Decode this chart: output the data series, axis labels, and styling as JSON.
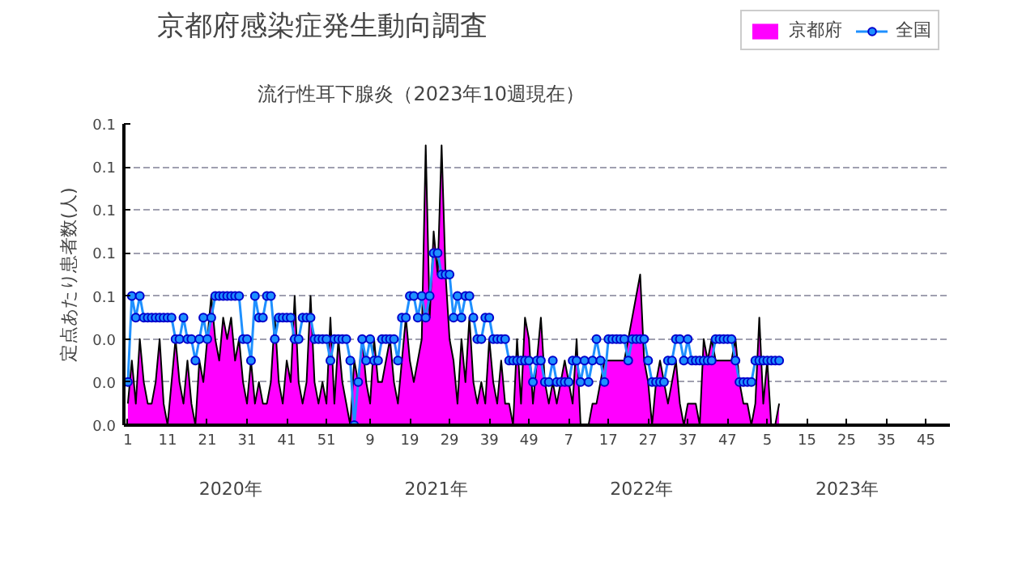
{
  "chart_data": {
    "type": "area",
    "title": "京都府感染症発生動向調査",
    "subtitle": "流行性耳下腺炎（2023年10週現在）",
    "ylabel": "定点あたり患者数(人)",
    "categories": [
      "1",
      null,
      null,
      null,
      null,
      null,
      null,
      null,
      null,
      null,
      "11",
      null,
      null,
      null,
      null,
      null,
      null,
      null,
      null,
      null,
      "21",
      null,
      null,
      null,
      null,
      null,
      null,
      null,
      null,
      null,
      "31",
      null,
      null,
      null,
      null,
      null,
      null,
      null,
      null,
      null,
      "41",
      null,
      null,
      null,
      null,
      null,
      null,
      null,
      null,
      null,
      "51",
      null,
      null,
      null,
      null,
      null,
      null,
      null,
      null,
      null,
      null,
      "9",
      null,
      null,
      null,
      null,
      null,
      null,
      null,
      null,
      null,
      "19",
      null,
      null,
      null,
      null,
      null,
      null,
      null,
      null,
      null,
      "29",
      null,
      null,
      null,
      null,
      null,
      null,
      null,
      null,
      null,
      "39",
      null,
      null,
      null,
      null,
      null,
      null,
      null,
      null,
      null,
      "49",
      null,
      null,
      null,
      null,
      null,
      null,
      null,
      null,
      null,
      "7",
      null,
      null,
      null,
      null,
      null,
      null,
      null,
      null,
      null,
      "17",
      null,
      null,
      null,
      null,
      null,
      null,
      null,
      null,
      null,
      "27",
      null,
      null,
      null,
      null,
      null,
      null,
      null,
      null,
      null,
      "37",
      null,
      null,
      null,
      null,
      null,
      null,
      null,
      null,
      null,
      "47",
      null,
      null,
      null,
      null,
      null,
      null,
      null,
      null,
      null,
      "5",
      null,
      null,
      null,
      null,
      null,
      null,
      null,
      null,
      null,
      "15",
      null,
      null,
      null,
      null,
      null,
      null,
      null,
      null,
      null,
      "25",
      null,
      null,
      null,
      null,
      null,
      null,
      null,
      null,
      null,
      "35",
      null,
      null,
      null,
      null,
      null,
      null,
      null,
      null,
      null,
      "45",
      null,
      null,
      null,
      null,
      null
    ],
    "series": [
      {
        "name": "京都府",
        "color": "#ff00ff",
        "values": [
          0.01,
          0.03,
          0.01,
          0.04,
          0.02,
          0.01,
          0.01,
          0.02,
          0.04,
          0.01,
          0,
          0.02,
          0.04,
          0.02,
          0.01,
          0.03,
          0.01,
          0,
          0.03,
          0.02,
          0.04,
          0.06,
          0.04,
          0.03,
          0.05,
          0.04,
          0.05,
          0.03,
          0.04,
          0.02,
          0.01,
          0.03,
          0.01,
          0.02,
          0.01,
          0.01,
          0.02,
          0.05,
          0.02,
          0.01,
          0.03,
          0.02,
          0.06,
          0.02,
          0.01,
          0.02,
          0.06,
          0.02,
          0.01,
          0.02,
          0.01,
          0.05,
          0.01,
          0.04,
          0.02,
          0.01,
          0,
          0.03,
          0.02,
          0.04,
          0.02,
          0.01,
          0.04,
          0.02,
          0.02,
          0.03,
          0.04,
          0.02,
          0.01,
          0.03,
          0.05,
          0.03,
          0.02,
          0.03,
          0.04,
          0.13,
          0.05,
          0.09,
          0.07,
          0.13,
          0.07,
          0.04,
          0.03,
          0.01,
          0.04,
          0.02,
          0.05,
          0.02,
          0.01,
          0.02,
          0.01,
          0.04,
          0.02,
          0.01,
          0.03,
          0.01,
          0.01,
          0,
          0.04,
          0.01,
          0.05,
          0.04,
          0.01,
          0.03,
          0.05,
          0.02,
          0.01,
          0.02,
          0.01,
          0.02,
          0.03,
          0.02,
          0.01,
          0.04,
          0,
          0,
          0,
          0.01,
          0.01,
          0.02,
          0.03,
          0.03,
          0.03,
          0.03,
          0.03,
          0.03,
          0.04,
          0.05,
          0.06,
          0.07,
          0.03,
          0.02,
          0,
          0.02,
          0.03,
          0.02,
          0.01,
          0.02,
          0.03,
          0.01,
          0,
          0.01,
          0.01,
          0.01,
          0,
          0.04,
          0.03,
          0.04,
          0.03,
          0.03,
          0.03,
          0.03,
          0.03,
          0.04,
          0.02,
          0.01,
          0.01,
          0,
          0.01,
          0.05,
          0.01,
          0.03,
          0,
          0,
          0.01,
          null,
          null,
          null,
          null,
          null,
          null,
          null,
          null,
          null,
          null,
          null,
          null,
          null,
          null,
          null,
          null,
          null,
          null,
          null,
          null,
          null,
          null,
          null,
          null,
          null,
          null,
          null,
          null,
          null,
          null,
          null,
          null,
          null,
          null,
          null,
          null,
          null,
          null,
          null,
          null,
          null,
          null
        ]
      },
      {
        "name": "全国",
        "type": "line",
        "marker": "circle",
        "color": "#1e90ff",
        "values": [
          0.02,
          0.06,
          0.05,
          0.06,
          0.05,
          0.05,
          0.05,
          0.05,
          0.05,
          0.05,
          0.05,
          0.05,
          0.04,
          0.04,
          0.05,
          0.04,
          0.04,
          0.03,
          0.04,
          0.05,
          0.04,
          0.05,
          0.06,
          0.06,
          0.06,
          0.06,
          0.06,
          0.06,
          0.06,
          0.04,
          0.04,
          0.03,
          0.06,
          0.05,
          0.05,
          0.06,
          0.06,
          0.04,
          0.05,
          0.05,
          0.05,
          0.05,
          0.04,
          0.04,
          0.05,
          0.05,
          0.05,
          0.04,
          0.04,
          0.04,
          0.04,
          0.03,
          0.04,
          0.04,
          0.04,
          0.04,
          0.03,
          0,
          0.02,
          0.04,
          0.03,
          0.04,
          0.03,
          0.03,
          0.04,
          0.04,
          0.04,
          0.04,
          0.03,
          0.05,
          0.05,
          0.06,
          0.06,
          0.05,
          0.06,
          0.05,
          0.06,
          0.08,
          0.08,
          0.07,
          0.07,
          0.07,
          0.05,
          0.06,
          0.05,
          0.06,
          0.06,
          0.05,
          0.04,
          0.04,
          0.05,
          0.05,
          0.04,
          0.04,
          0.04,
          0.04,
          0.03,
          0.03,
          0.03,
          0.03,
          0.03,
          0.03,
          0.02,
          0.03,
          0.03,
          0.02,
          0.02,
          0.03,
          0.02,
          0.02,
          0.02,
          0.02,
          0.03,
          0.03,
          0.02,
          0.03,
          0.02,
          0.03,
          0.04,
          0.03,
          0.02,
          0.04,
          0.04,
          0.04,
          0.04,
          0.04,
          0.03,
          0.04,
          0.04,
          0.04,
          0.04,
          0.03,
          0.02,
          0.02,
          0.02,
          0.02,
          0.03,
          0.03,
          0.04,
          0.04,
          0.03,
          0.04,
          0.03,
          0.03,
          0.03,
          0.03,
          0.03,
          0.03,
          0.04,
          0.04,
          0.04,
          0.04,
          0.04,
          0.03,
          0.02,
          0.02,
          0.02,
          0.02,
          0.03,
          0.03,
          0.03,
          0.03,
          0.03,
          0.03,
          0.03,
          null,
          null,
          null,
          null,
          null,
          null,
          null,
          null,
          null,
          null,
          null,
          null,
          null,
          null,
          null,
          null,
          null,
          null,
          null,
          null,
          null,
          null,
          null,
          null,
          null,
          null,
          null,
          null,
          null,
          null,
          null,
          null,
          null,
          null,
          null,
          null,
          null,
          null,
          null,
          null,
          null,
          null
        ]
      }
    ],
    "grid": "y",
    "legend": "top right",
    "ylim": [
      0,
      0.14
    ],
    "yticks": [
      {
        "value": 0,
        "label": "0.0"
      },
      {
        "value": 0.02,
        "label": "0.0"
      },
      {
        "value": 0.04,
        "label": "0.0"
      },
      {
        "value": 0.06,
        "label": "0.1"
      },
      {
        "value": 0.08,
        "label": "0.1"
      },
      {
        "value": 0.1,
        "label": "0.1"
      },
      {
        "value": 0.12,
        "label": "0.1"
      },
      {
        "value": 0.14,
        "label": "0.1"
      }
    ],
    "annotations": [
      "2020年",
      "2021年",
      "2022年",
      "2023年"
    ]
  }
}
